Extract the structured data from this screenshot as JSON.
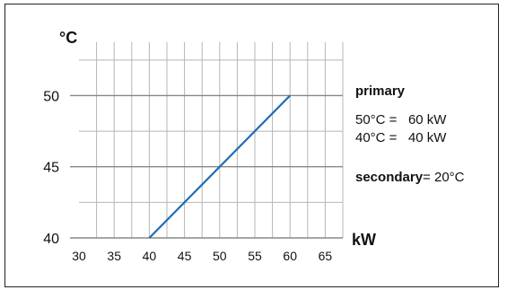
{
  "chart_data": {
    "type": "line",
    "ylabel": "°C",
    "xlabel": "kW",
    "x_ticks": [
      30,
      35,
      40,
      45,
      50,
      55,
      60,
      65
    ],
    "y_ticks": [
      40,
      45,
      50
    ],
    "xlim": [
      30,
      67.5
    ],
    "ylim": [
      40,
      53.75
    ],
    "grid": true,
    "series": [
      {
        "x": [
          40,
          60
        ],
        "y": [
          40,
          50
        ],
        "color": "#1f6db5"
      }
    ]
  },
  "annotations": {
    "primary_label": "primary",
    "primary_line1": "50°C =   60 kW",
    "primary_line2": "40°C =   40 kW",
    "secondary_label": "secondary",
    "secondary_value": "= 20°C"
  }
}
